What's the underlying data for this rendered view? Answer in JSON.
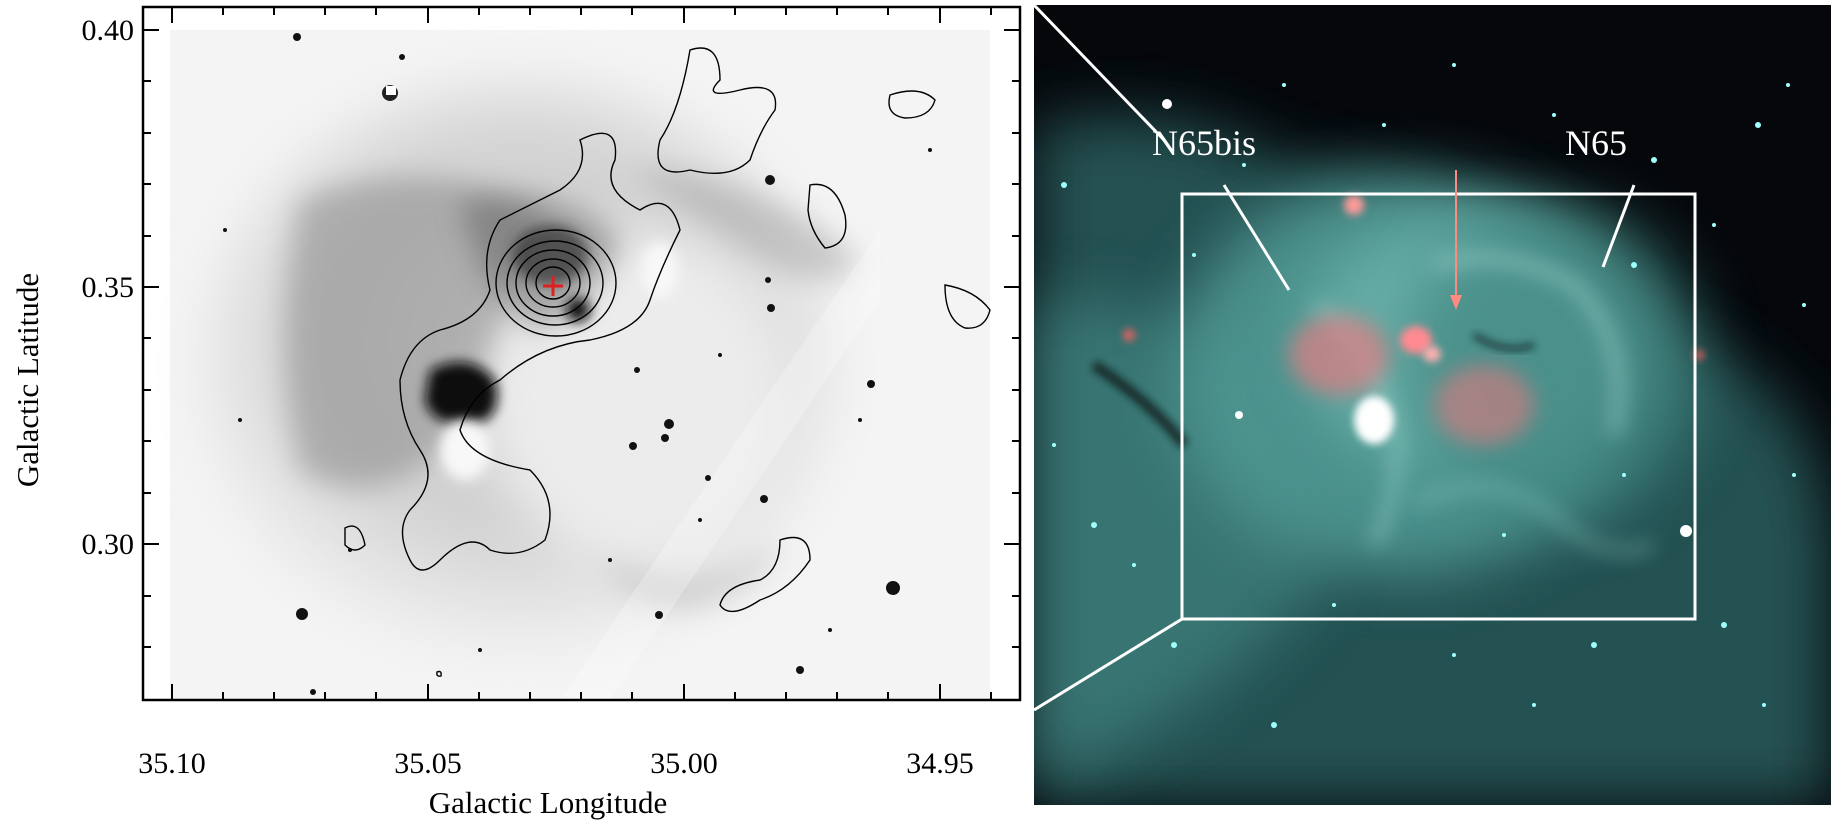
{
  "left_plot": {
    "x_axis_title": "Galactic Longitude",
    "y_axis_title": "Galactic Latitude",
    "x_tick_labels": [
      "35.10",
      "35.05",
      "35.00",
      "34.95"
    ],
    "y_tick_labels": [
      "0.40",
      "0.35",
      "0.30"
    ],
    "image_style": "grayscale infrared emission with black contours",
    "marker": "red cross"
  },
  "right_image": {
    "labels": [
      "N65bis",
      "N65"
    ],
    "colors": {
      "emission": "#5fb3ad",
      "background": "#05070b",
      "arrow": "#ff8a80",
      "box": "#ffffff"
    }
  }
}
